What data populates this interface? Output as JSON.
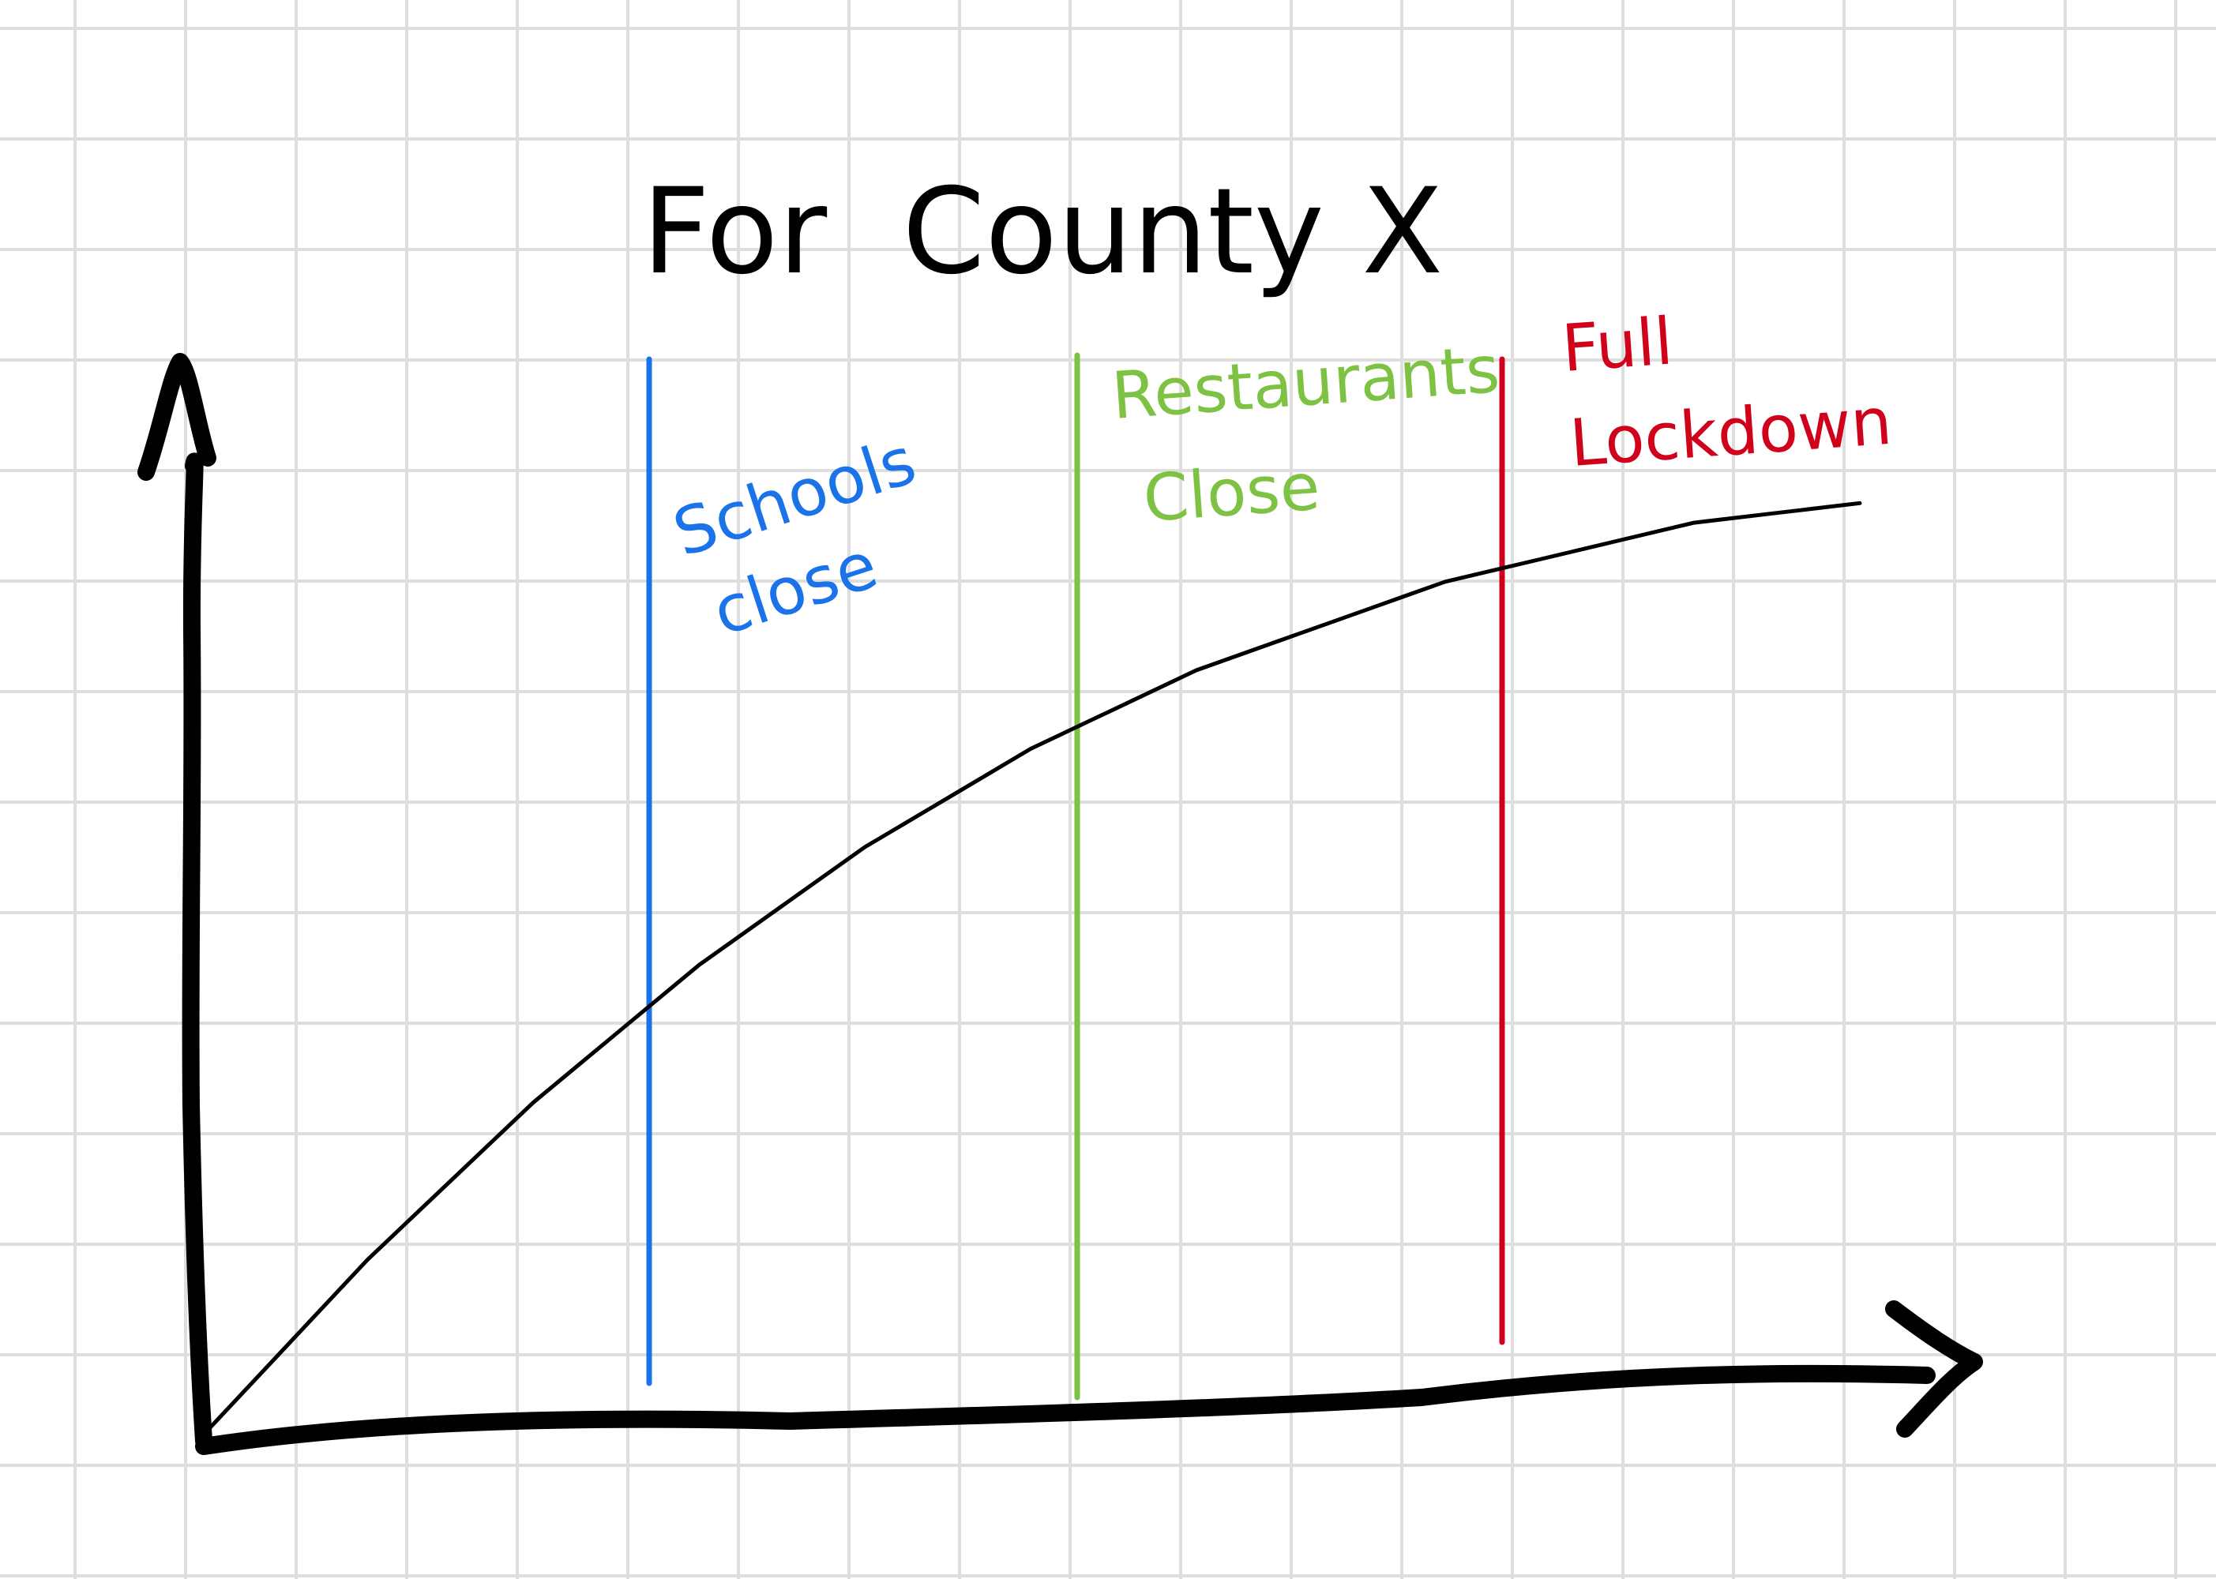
{
  "chart_data": {
    "type": "line",
    "title": "For  County X",
    "xlabel": "",
    "ylabel": "",
    "grid": true,
    "axis_color": "#000000",
    "line_color": "#000000",
    "series": [
      {
        "x": [
          0,
          5,
          10,
          15,
          20,
          25,
          30,
          35,
          40,
          45,
          50,
          55,
          60,
          65,
          70,
          75,
          80,
          85,
          90,
          95,
          100
        ],
        "y": [
          0,
          9,
          18,
          26,
          34,
          41,
          48,
          54,
          60,
          65,
          70,
          74,
          78,
          81,
          84,
          87,
          89,
          91,
          93,
          94,
          95
        ]
      }
    ],
    "events": [
      {
        "label_lines": [
          "Schools",
          "close"
        ],
        "color": "#1a73e8"
      },
      {
        "label_lines": [
          "Restaurants",
          "Close"
        ],
        "color": "#7dc242"
      },
      {
        "label_lines": [
          "Full",
          "Lockdown"
        ],
        "color": "#d0021b"
      }
    ]
  }
}
